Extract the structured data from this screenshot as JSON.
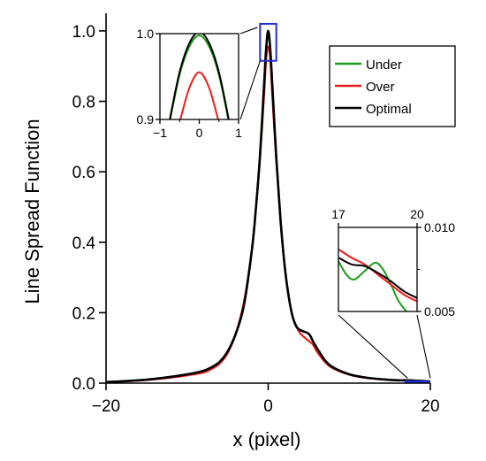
{
  "chart_data": {
    "type": "line",
    "xlabel": "x (pixel)",
    "ylabel": "Line Spread Function",
    "xlim": [
      -20,
      20
    ],
    "ylim": [
      0,
      1.05
    ],
    "xticks": [
      -20,
      0,
      20
    ],
    "xtick_labels": [
      "−20",
      "0",
      "20"
    ],
    "yticks": [
      0.0,
      0.2,
      0.4,
      0.6,
      0.8,
      1.0
    ],
    "ytick_labels": [
      "0.0",
      "0.2",
      "0.4",
      "0.6",
      "0.8",
      "1.0"
    ],
    "grid": false,
    "legend_position": "top-right",
    "colors": {
      "under": "#1a9e1a",
      "over": "#ee1c1c",
      "optimal": "#000000",
      "zoom_box": "#1f2fd6"
    },
    "series": [
      {
        "name": "Under",
        "color": "#1a9e1a",
        "key": "under"
      },
      {
        "name": "Over",
        "color": "#ee1c1c",
        "key": "over"
      },
      {
        "name": "Optimal",
        "color": "#000000",
        "key": "optimal"
      }
    ],
    "main_curves": {
      "optimal": [
        [
          -20,
          0.003
        ],
        [
          -16,
          0.008
        ],
        [
          -13,
          0.015
        ],
        [
          -10,
          0.025
        ],
        [
          -8,
          0.035
        ],
        [
          -7,
          0.045
        ],
        [
          -6,
          0.06
        ],
        [
          -5,
          0.09
        ],
        [
          -4,
          0.14
        ],
        [
          -3,
          0.22
        ],
        [
          -2,
          0.38
        ],
        [
          -1.5,
          0.5
        ],
        [
          -1,
          0.65
        ],
        [
          -0.5,
          0.85
        ],
        [
          -0.25,
          0.95
        ],
        [
          0,
          1.0
        ],
        [
          0.25,
          0.95
        ],
        [
          0.5,
          0.85
        ],
        [
          1,
          0.64
        ],
        [
          1.5,
          0.47
        ],
        [
          2,
          0.34
        ],
        [
          2.5,
          0.25
        ],
        [
          3,
          0.19
        ],
        [
          3.5,
          0.16
        ],
        [
          4,
          0.15
        ],
        [
          5,
          0.14
        ],
        [
          5.5,
          0.12
        ],
        [
          6,
          0.1
        ],
        [
          7,
          0.065
        ],
        [
          8,
          0.045
        ],
        [
          10,
          0.025
        ],
        [
          12,
          0.016
        ],
        [
          14,
          0.011
        ],
        [
          16,
          0.008
        ],
        [
          17,
          0.0082
        ],
        [
          18,
          0.007
        ],
        [
          20,
          0.005
        ]
      ],
      "over": [
        [
          -20,
          0.003
        ],
        [
          -16,
          0.007
        ],
        [
          -13,
          0.013
        ],
        [
          -10,
          0.022
        ],
        [
          -8,
          0.03
        ],
        [
          -7,
          0.04
        ],
        [
          -6,
          0.055
        ],
        [
          -5,
          0.085
        ],
        [
          -4,
          0.14
        ],
        [
          -3,
          0.23
        ],
        [
          -2,
          0.38
        ],
        [
          -1.5,
          0.5
        ],
        [
          -1,
          0.64
        ],
        [
          -0.5,
          0.82
        ],
        [
          -0.25,
          0.92
        ],
        [
          0,
          0.955
        ],
        [
          0.25,
          0.92
        ],
        [
          0.5,
          0.82
        ],
        [
          1,
          0.63
        ],
        [
          1.5,
          0.47
        ],
        [
          2,
          0.34
        ],
        [
          2.5,
          0.25
        ],
        [
          3,
          0.19
        ],
        [
          3.5,
          0.16
        ],
        [
          4,
          0.14
        ],
        [
          5,
          0.12
        ],
        [
          5.5,
          0.11
        ],
        [
          6,
          0.09
        ],
        [
          7,
          0.06
        ],
        [
          8,
          0.042
        ],
        [
          10,
          0.024
        ],
        [
          12,
          0.015
        ],
        [
          14,
          0.011
        ],
        [
          16,
          0.0085
        ],
        [
          17,
          0.0085
        ],
        [
          18,
          0.0075
        ],
        [
          20,
          0.005
        ]
      ],
      "under": [
        [
          -20,
          0.003
        ],
        [
          -16,
          0.008
        ],
        [
          -13,
          0.015
        ],
        [
          -10,
          0.025
        ],
        [
          -8,
          0.035
        ],
        [
          -7,
          0.045
        ],
        [
          -6,
          0.06
        ],
        [
          -5,
          0.09
        ],
        [
          -4,
          0.14
        ],
        [
          -3,
          0.22
        ],
        [
          -2,
          0.38
        ],
        [
          -1.5,
          0.5
        ],
        [
          -1,
          0.65
        ],
        [
          -0.5,
          0.85
        ],
        [
          -0.25,
          0.95
        ],
        [
          0,
          0.995
        ],
        [
          0.25,
          0.95
        ],
        [
          0.5,
          0.85
        ],
        [
          1,
          0.64
        ],
        [
          1.5,
          0.47
        ],
        [
          2,
          0.34
        ],
        [
          2.5,
          0.25
        ],
        [
          3,
          0.19
        ],
        [
          3.5,
          0.16
        ],
        [
          4,
          0.15
        ],
        [
          5,
          0.14
        ],
        [
          5.5,
          0.12
        ],
        [
          6,
          0.1
        ],
        [
          7,
          0.065
        ],
        [
          8,
          0.045
        ],
        [
          10,
          0.025
        ],
        [
          12,
          0.016
        ],
        [
          14,
          0.011
        ],
        [
          16,
          0.008
        ],
        [
          17,
          0.0082
        ],
        [
          18,
          0.0075
        ],
        [
          20,
          0.005
        ]
      ]
    },
    "zoom_regions": [
      {
        "xlim": [
          -1,
          1
        ],
        "ylim": [
          0.9,
          1.0
        ],
        "color": "#1f2fd6"
      },
      {
        "xlim": [
          17,
          20
        ],
        "ylim": [
          0.005,
          0.01
        ],
        "color": "#1f2fd6"
      }
    ],
    "insets": [
      {
        "name": "peak",
        "xlim": [
          -1,
          1
        ],
        "ylim": [
          0.9,
          1.0
        ],
        "xticks": [
          -1,
          0,
          1
        ],
        "xtick_labels": [
          "−1",
          "0",
          "1"
        ],
        "yticks": [
          0.9,
          1.0
        ],
        "ytick_labels": [
          "0.9",
          "1.0"
        ],
        "curves": {
          "optimal": [
            [
              -0.75,
              0.9
            ],
            [
              -0.5,
              0.955
            ],
            [
              -0.25,
              0.989
            ],
            [
              0,
              1.002
            ],
            [
              0.25,
              0.989
            ],
            [
              0.5,
              0.955
            ],
            [
              0.75,
              0.9
            ]
          ],
          "under": [
            [
              -0.74,
              0.9
            ],
            [
              -0.5,
              0.952
            ],
            [
              -0.25,
              0.985
            ],
            [
              0,
              0.998
            ],
            [
              0.25,
              0.985
            ],
            [
              0.5,
              0.952
            ],
            [
              0.74,
              0.9
            ]
          ],
          "over": [
            [
              -0.48,
              0.9
            ],
            [
              -0.25,
              0.937
            ],
            [
              0,
              0.955
            ],
            [
              0.25,
              0.937
            ],
            [
              0.48,
              0.9
            ]
          ]
        }
      },
      {
        "name": "tail",
        "xlim": [
          17,
          20
        ],
        "ylim": [
          0.005,
          0.01
        ],
        "xticks": [
          17,
          20
        ],
        "xtick_labels": [
          "17",
          "20"
        ],
        "yticks": [
          0.005,
          0.01
        ],
        "ytick_labels": [
          "0.005",
          "0.010"
        ],
        "curves": {
          "optimal": [
            [
              17,
              0.0082
            ],
            [
              17.5,
              0.0078
            ],
            [
              18,
              0.0077
            ],
            [
              18.5,
              0.0073
            ],
            [
              19,
              0.0068
            ],
            [
              19.5,
              0.0062
            ],
            [
              20,
              0.0058
            ]
          ],
          "over": [
            [
              17,
              0.0087
            ],
            [
              17.5,
              0.0082
            ],
            [
              18,
              0.0078
            ],
            [
              18.5,
              0.0072
            ],
            [
              19,
              0.0066
            ],
            [
              19.5,
              0.006
            ],
            [
              20,
              0.0056
            ]
          ],
          "under": [
            [
              17,
              0.008
            ],
            [
              17.3,
              0.0072
            ],
            [
              17.6,
              0.0069
            ],
            [
              18,
              0.0074
            ],
            [
              18.4,
              0.0079
            ],
            [
              18.7,
              0.0075
            ],
            [
              19,
              0.0066
            ],
            [
              19.3,
              0.0056
            ],
            [
              19.6,
              0.005
            ]
          ]
        }
      }
    ]
  }
}
